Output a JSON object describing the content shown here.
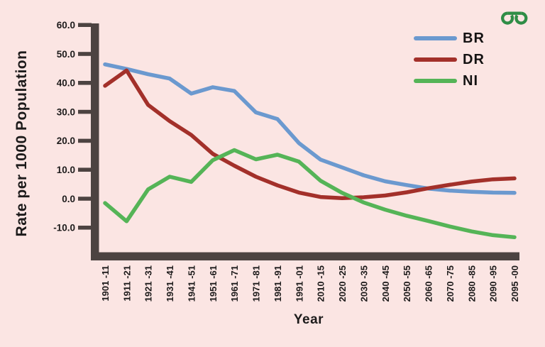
{
  "page": {
    "background": "#fbe5e3"
  },
  "logo": {
    "label": "geeksforgeeks-logo",
    "color": "#2f8d46"
  },
  "chart_data": {
    "type": "line",
    "title": "",
    "xlabel": "Year",
    "ylabel": "Rate per 1000 Population",
    "grid": false,
    "legend_position": "top-right",
    "axis_color": "#4c4341",
    "text_color": "#1d1b1b",
    "ylim": [
      -15,
      60
    ],
    "y_tick_values": [
      60,
      50,
      40,
      30,
      20,
      10,
      0,
      -10
    ],
    "y_tick_labels": [
      "60.0",
      "50.0",
      "40.0",
      "30.0",
      "20.0",
      "10.0",
      "0.0",
      "-10.0"
    ],
    "categories": [
      "1901 -11",
      "1911 -21",
      "1921 -31",
      "1931 -41",
      "1941 -51",
      "1951 -61",
      "1961 -71",
      "1971 -81",
      "1981 -91",
      "1991 -01",
      "2010 -15",
      "2020 -25",
      "2030 -35",
      "2040 -45",
      "2050 -55",
      "2060 -65",
      "2070 -75",
      "2080 -85",
      "2090 -95",
      "2095 -00"
    ],
    "series": [
      {
        "name": "BR",
        "color": "#6b99cf",
        "values": [
          46.4,
          44.8,
          43.0,
          41.5,
          36.3,
          38.5,
          37.2,
          29.8,
          27.5,
          19.2,
          13.5,
          10.8,
          8.1,
          6.0,
          4.7,
          3.5,
          2.8,
          2.4,
          2.1,
          2.0
        ]
      },
      {
        "name": "DR",
        "color": "#a3302a",
        "values": [
          39.0,
          44.3,
          32.4,
          26.8,
          22.0,
          15.5,
          11.4,
          7.6,
          4.6,
          2.1,
          0.6,
          0.2,
          0.5,
          1.1,
          2.2,
          3.6,
          4.8,
          5.9,
          6.7,
          7.0
        ]
      },
      {
        "name": "NI",
        "color": "#55b457",
        "values": [
          -1.5,
          -7.8,
          3.2,
          7.6,
          5.8,
          13.3,
          16.8,
          13.6,
          15.2,
          12.8,
          6.2,
          2.0,
          -1.3,
          -3.8,
          -5.9,
          -7.7,
          -9.6,
          -11.3,
          -12.6,
          -13.3
        ]
      }
    ]
  }
}
